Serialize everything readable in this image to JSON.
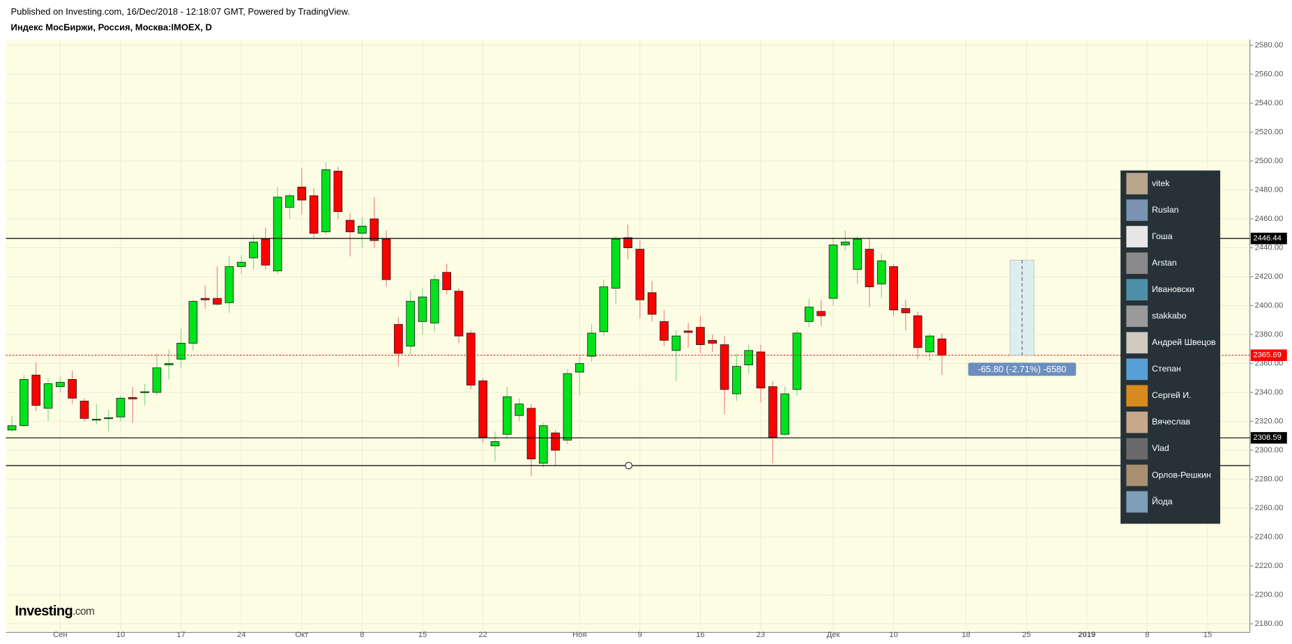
{
  "header": {
    "published": "Published on Investing.com, 16/Dec/2018 - 12:18:07 GMT, Powered by TradingView.",
    "symbol": "Индекс МосБиржи, Россия, Москва:IMOEX, D"
  },
  "logo": {
    "main": "Investing",
    "suffix": ".com"
  },
  "chart_data": {
    "type": "candlestick",
    "categories": [
      null,
      null,
      null,
      null,
      "Сен",
      null,
      null,
      null,
      null,
      "10",
      null,
      null,
      null,
      null,
      "17",
      null,
      null,
      null,
      null,
      "24",
      null,
      null,
      null,
      null,
      "Окт",
      null,
      null,
      null,
      null,
      "8",
      null,
      null,
      null,
      null,
      "15",
      null,
      null,
      null,
      null,
      "22",
      null,
      null,
      null,
      null,
      null,
      null,
      null,
      "Ноя",
      null,
      null,
      null,
      null,
      "9",
      null,
      null,
      null,
      null,
      "16",
      null,
      null,
      null,
      null,
      "23",
      null,
      null,
      null,
      null,
      null,
      "Дек",
      null,
      null,
      null,
      null,
      "10",
      null,
      null,
      null,
      null,
      null,
      "18",
      null,
      null,
      null,
      null,
      "25",
      null,
      null,
      null,
      null,
      "2019",
      null,
      null,
      null,
      null,
      "8",
      null,
      null,
      null,
      null,
      "15",
      null,
      null,
      null
    ],
    "open": [
      2314,
      2317,
      2352,
      2329,
      2344,
      2349,
      2334,
      2321,
      2322,
      2323,
      2336.5,
      2340,
      2340,
      2359,
      2363,
      2374,
      2405,
      2405,
      2402,
      2427,
      2433,
      2446,
      2424,
      2468,
      2482,
      2476,
      2451,
      2493,
      2459,
      2450,
      2460,
      2446,
      2387,
      2372,
      2389,
      2388,
      2423,
      2410,
      2381,
      2348,
      2303,
      2311,
      2324,
      2329,
      2291,
      2312,
      2307,
      2354,
      2365,
      2382,
      2412,
      2447,
      2439,
      2409,
      2389,
      2369,
      2382.5,
      2385,
      2376,
      2373,
      2339,
      2359,
      2368,
      2344,
      2311,
      2342,
      2389,
      2396,
      2405,
      2442,
      2425,
      2439,
      2415,
      2427,
      2398,
      2393,
      2368,
      2377,
      null,
      null,
      null,
      null,
      null,
      null,
      null,
      null,
      null,
      null,
      null,
      null,
      null,
      null,
      null,
      null,
      null,
      null,
      null,
      null,
      null,
      null,
      null,
      null,
      null
    ],
    "high": [
      2324,
      2352,
      2361,
      2350,
      2351,
      2355,
      2336,
      2332,
      2328,
      2338,
      2344,
      2346,
      2367,
      2370,
      2384,
      2404,
      2414,
      2427,
      2434,
      2435,
      2449,
      2454,
      2482,
      2478,
      2495,
      2481,
      2499,
      2496,
      2464,
      2461,
      2475,
      2452,
      2392,
      2410,
      2412,
      2421,
      2429,
      2412,
      2383,
      2350,
      2313,
      2344,
      2336,
      2332,
      2319,
      2314,
      2356,
      2365,
      2387,
      2418,
      2448,
      2456,
      2445,
      2417,
      2397,
      2383,
      2388,
      2393,
      2380,
      2379,
      2367,
      2373,
      2373,
      2348,
      2344,
      2383,
      2405,
      2404,
      2447,
      2452,
      2448,
      2446,
      2436,
      2429,
      2404,
      2396,
      2381,
      2381,
      null,
      null,
      null,
      null,
      null,
      null,
      null,
      null,
      null,
      null,
      null,
      null,
      null,
      null,
      null,
      null,
      null,
      null,
      null,
      null,
      null,
      null,
      null,
      null,
      null
    ],
    "low": [
      2313,
      2316,
      2327,
      2320,
      2340,
      2332,
      2320,
      2318,
      2313,
      2320,
      2319,
      2331,
      2338,
      2349,
      2357,
      2369,
      2398,
      2400,
      2395,
      2422,
      2425,
      2425,
      2422,
      2460,
      2463,
      2447,
      2449,
      2460,
      2434,
      2440,
      2440,
      2413,
      2358,
      2366,
      2380,
      2382,
      2408,
      2374,
      2342,
      2305,
      2292,
      2308,
      2320,
      2282,
      2288,
      2289,
      2304,
      2338,
      2361,
      2379,
      2401,
      2432,
      2391,
      2389,
      2372,
      2348,
      2371,
      2367,
      2368,
      2325,
      2334,
      2353,
      2333,
      2291,
      2310,
      2338,
      2385,
      2386,
      2400,
      2438,
      2415,
      2399,
      2405,
      2393,
      2383,
      2363,
      2362,
      2352,
      null,
      null,
      null,
      null,
      null,
      null,
      null,
      null,
      null,
      null,
      null,
      null,
      null,
      null,
      null,
      null,
      null,
      null,
      null,
      null,
      null,
      null,
      null,
      null,
      null
    ],
    "close": [
      2317,
      2349,
      2331,
      2346,
      2347,
      2336,
      2322,
      2321.5,
      2322.5,
      2336,
      2335.5,
      2340.5,
      2357,
      2360,
      2374,
      2403,
      2404,
      2401,
      2427,
      2430,
      2444,
      2428,
      2475,
      2476,
      2473,
      2450,
      2494,
      2465,
      2451,
      2455,
      2445,
      2418,
      2367,
      2403,
      2406,
      2418,
      2411,
      2379,
      2345,
      2309,
      2306,
      2337,
      2332,
      2294,
      2317,
      2300,
      2353,
      2360,
      2381,
      2413,
      2446,
      2440,
      2404,
      2394,
      2376,
      2379,
      2381.5,
      2373,
      2374,
      2342,
      2358,
      2369,
      2343,
      2309,
      2339,
      2381,
      2399,
      2393,
      2442,
      2444,
      2446,
      2413,
      2431,
      2397,
      2395,
      2371,
      2379,
      2365.69,
      null,
      null,
      null,
      null,
      null,
      null,
      null,
      null,
      null,
      null,
      null,
      null,
      null,
      null,
      null,
      null,
      null,
      null,
      null,
      null,
      null,
      null,
      null,
      null,
      null
    ],
    "up_color": "#00e21b",
    "down_color": "#ff0000",
    "ylim": [
      2174,
      2584
    ],
    "yticks": [
      {
        "value": 2180,
        "label": "2180.00"
      },
      {
        "value": 2200,
        "label": "2200.00"
      },
      {
        "value": 2220,
        "label": "2220.00"
      },
      {
        "value": 2240,
        "label": "2240.00"
      },
      {
        "value": 2260,
        "label": "2260.00"
      },
      {
        "value": 2280,
        "label": "2280.00"
      },
      {
        "value": 2300,
        "label": "2300.00"
      },
      {
        "value": 2320,
        "label": "2320.00"
      },
      {
        "value": 2340,
        "label": "2340.00"
      },
      {
        "value": 2360,
        "label": "2360.00"
      },
      {
        "value": 2380,
        "label": "2380.00"
      },
      {
        "value": 2400,
        "label": "2400.00"
      },
      {
        "value": 2420,
        "label": "2420.00"
      },
      {
        "value": 2440,
        "label": "2440.00"
      },
      {
        "value": 2460,
        "label": "2460.00"
      },
      {
        "value": 2480,
        "label": "2480.00"
      },
      {
        "value": 2500,
        "label": "2500.00"
      },
      {
        "value": 2520,
        "label": "2520.00"
      },
      {
        "value": 2540,
        "label": "2540.00"
      },
      {
        "value": 2560,
        "label": "2560.00"
      },
      {
        "value": 2580,
        "label": "2580.00"
      }
    ],
    "grid": true,
    "hlines": [
      {
        "value": 2446.44,
        "color": "#000000"
      },
      {
        "value": 2308.59,
        "color": "#000000"
      },
      {
        "value": 2289.4,
        "color": "#000000"
      }
    ],
    "last_price": {
      "value": 2365.69,
      "color": "#ff0000"
    },
    "measure": {
      "from": 2431.49,
      "to": 2365.69,
      "label": "-65.80 (-2.71%) -6580"
    }
  },
  "users": [
    "vitek",
    "Ruslan",
    "Гоша",
    "Arstan",
    "Ивановски",
    "stakkabo",
    "Андрей Швецов",
    "Степан",
    "Сергей И.",
    "Вячеслав",
    "Vlad",
    "Орлов-Решкин",
    "Йода"
  ]
}
